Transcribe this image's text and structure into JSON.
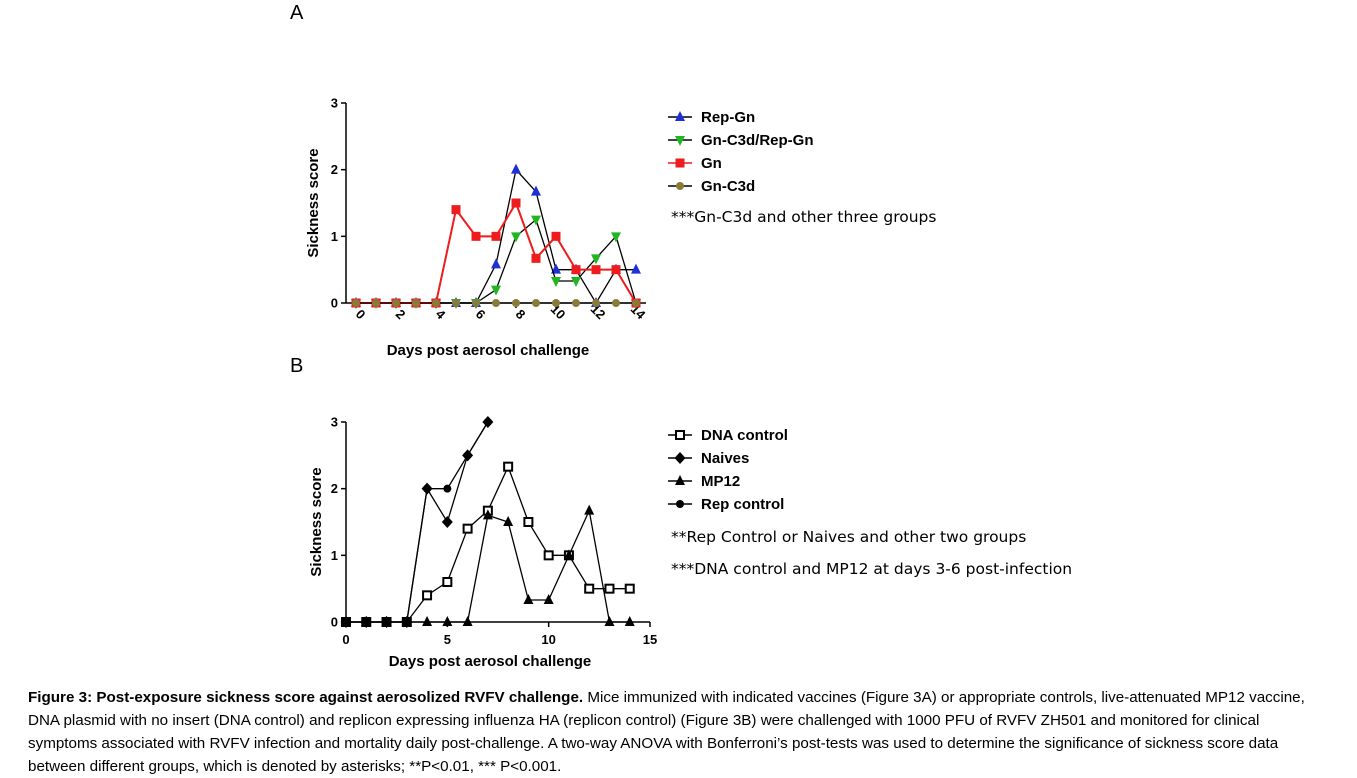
{
  "panels": [
    {
      "letter": "A",
      "chart_data": {
        "type": "line",
        "xlabel": "Days post aerosol challenge",
        "ylabel": "Sickness score",
        "xlim": [
          -0.5,
          14.5
        ],
        "ylim": [
          0,
          3
        ],
        "xticks": [
          0,
          2,
          4,
          6,
          8,
          10,
          12,
          14
        ],
        "yticks": [
          0,
          1,
          2,
          3
        ],
        "xtick_rotation": 45,
        "legend_position": "right",
        "series": [
          {
            "name": "Rep-Gn",
            "marker": "triangle-up",
            "color": "#1f2fd6",
            "line_color": "#000000",
            "x": [
              0,
              1,
              2,
              3,
              4,
              5,
              6,
              7,
              8,
              9,
              10,
              11,
              12,
              13,
              14
            ],
            "y": [
              0,
              0,
              0,
              0,
              0,
              0,
              0,
              0.58,
              2,
              1.67,
              0.5,
              0.5,
              0,
              0.5,
              0.5
            ]
          },
          {
            "name": "Gn-C3d/Rep-Gn",
            "marker": "triangle-down",
            "color": "#22b522",
            "line_color": "#000000",
            "x": [
              0,
              1,
              2,
              3,
              4,
              5,
              6,
              7,
              8,
              9,
              10,
              11,
              12,
              13,
              14
            ],
            "y": [
              0,
              0,
              0,
              0,
              0,
              0,
              0,
              0.2,
              1,
              1.25,
              0.33,
              0.33,
              0.67,
              1,
              0
            ]
          },
          {
            "name": "Gn",
            "marker": "square",
            "color": "#ee1c1c",
            "line_color": "#ee1c1c",
            "x": [
              0,
              1,
              2,
              3,
              4,
              5,
              6,
              7,
              8,
              9,
              10,
              11,
              12,
              13,
              14
            ],
            "y": [
              0,
              0,
              0,
              0,
              0,
              1.4,
              1,
              1,
              1.5,
              0.67,
              1,
              0.5,
              0.5,
              0.5,
              0
            ]
          },
          {
            "name": "Gn-C3d",
            "marker": "circle",
            "color": "#8a7a3a",
            "line_color": "#000000",
            "x": [
              0,
              1,
              2,
              3,
              4,
              5,
              6,
              7,
              8,
              9,
              10,
              11,
              12,
              13,
              14
            ],
            "y": [
              0,
              0,
              0,
              0,
              0,
              0,
              0,
              0,
              0,
              0,
              0,
              0,
              0,
              0,
              0
            ]
          }
        ],
        "annotations": [
          "***Gn-C3d and other three groups"
        ]
      }
    },
    {
      "letter": "B",
      "chart_data": {
        "type": "line",
        "xlabel": "Days post aerosol challenge",
        "ylabel": "Sickness score",
        "xlim": [
          0,
          15
        ],
        "ylim": [
          0,
          3
        ],
        "xticks": [
          0,
          5,
          10,
          15
        ],
        "yticks": [
          0,
          1,
          2,
          3
        ],
        "legend_position": "right",
        "series": [
          {
            "name": "DNA control",
            "marker": "open-square",
            "color": "#000000",
            "line_color": "#000000",
            "x": [
              0,
              1,
              2,
              3,
              4,
              5,
              6,
              7,
              8,
              9,
              10,
              11,
              12,
              13,
              14
            ],
            "y": [
              0,
              0,
              0,
              0,
              0.4,
              0.6,
              1.4,
              1.67,
              2.33,
              1.5,
              1,
              1,
              0.5,
              0.5,
              0.5
            ]
          },
          {
            "name": "Naives",
            "marker": "diamond",
            "color": "#000000",
            "line_color": "#000000",
            "x": [
              0,
              1,
              2,
              3,
              4,
              5,
              6,
              7
            ],
            "y": [
              0,
              0,
              0,
              0,
              2,
              1.5,
              2.5,
              3
            ]
          },
          {
            "name": "MP12",
            "marker": "triangle-up",
            "color": "#000000",
            "line_color": "#000000",
            "x": [
              0,
              1,
              2,
              3,
              4,
              5,
              6,
              7,
              8,
              9,
              10,
              11,
              12,
              13,
              14
            ],
            "y": [
              0,
              0,
              0,
              0,
              0,
              0,
              0,
              1.6,
              1.5,
              0.33,
              0.33,
              1,
              1.67,
              0,
              0
            ]
          },
          {
            "name": "Rep control",
            "marker": "circle",
            "color": "#000000",
            "line_color": "#000000",
            "x": [
              0,
              1,
              2,
              3,
              4,
              5,
              6,
              7
            ],
            "y": [
              0,
              0,
              0,
              0,
              2,
              2,
              2.5,
              3
            ]
          }
        ],
        "annotations": [
          "**Rep Control or Naives and other two groups",
          "***DNA control and MP12 at days 3-6 post-infection"
        ]
      }
    }
  ],
  "caption": {
    "title": "Figure 3: Post-exposure sickness score against aerosolized RVFV challenge.",
    "body": " Mice immunized with indicated vaccines (Figure 3A) or appropriate controls, live-attenuated MP12 vaccine, DNA plasmid with no insert (DNA control) and replicon expressing influenza HA (replicon control) (Figure 3B) were challenged with 1000 PFU of RVFV ZH501 and monitored for clinical symptoms associated with RVFV infection and mortality daily post-challenge. A two-way ANOVA with Bonferroni’s post-tests was used to determine the significance of sickness score data between different groups, which is denoted by asterisks; **P<0.01, *** P<0.001."
  }
}
